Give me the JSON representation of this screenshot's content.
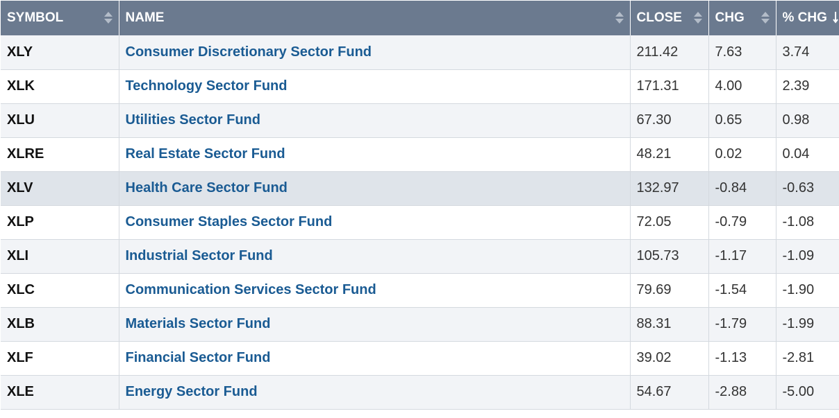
{
  "table": {
    "columns": [
      {
        "label": "SYMBOL",
        "sort_icon": "sort-both-icon"
      },
      {
        "label": "NAME",
        "sort_icon": "sort-both-icon"
      },
      {
        "label": "CLOSE",
        "sort_icon": "sort-both-icon"
      },
      {
        "label": "CHG",
        "sort_icon": "sort-both-icon"
      },
      {
        "label": "% CHG",
        "sort_icon": "sort-descending-icon"
      }
    ],
    "rows": [
      {
        "symbol": "XLY",
        "name": "Consumer Discretionary Sector Fund",
        "close": "211.42",
        "chg": "7.63",
        "pct_chg": "3.74"
      },
      {
        "symbol": "XLK",
        "name": "Technology Sector Fund",
        "close": "171.31",
        "chg": "4.00",
        "pct_chg": "2.39"
      },
      {
        "symbol": "XLU",
        "name": "Utilities Sector Fund",
        "close": "67.30",
        "chg": "0.65",
        "pct_chg": "0.98"
      },
      {
        "symbol": "XLRE",
        "name": "Real Estate Sector Fund",
        "close": "48.21",
        "chg": "0.02",
        "pct_chg": "0.04"
      },
      {
        "symbol": "XLV",
        "name": "Health Care Sector Fund",
        "close": "132.97",
        "chg": "-0.84",
        "pct_chg": "-0.63"
      },
      {
        "symbol": "XLP",
        "name": "Consumer Staples Sector Fund",
        "close": "72.05",
        "chg": "-0.79",
        "pct_chg": "-1.08"
      },
      {
        "symbol": "XLI",
        "name": "Industrial Sector Fund",
        "close": "105.73",
        "chg": "-1.17",
        "pct_chg": "-1.09"
      },
      {
        "symbol": "XLC",
        "name": "Communication Services Sector Fund",
        "close": "79.69",
        "chg": "-1.54",
        "pct_chg": "-1.90"
      },
      {
        "symbol": "XLB",
        "name": "Materials Sector Fund",
        "close": "88.31",
        "chg": "-1.79",
        "pct_chg": "-1.99"
      },
      {
        "symbol": "XLF",
        "name": "Financial Sector Fund",
        "close": "39.02",
        "chg": "-1.13",
        "pct_chg": "-2.81"
      },
      {
        "symbol": "XLE",
        "name": "Energy Sector Fund",
        "close": "54.67",
        "chg": "-2.88",
        "pct_chg": "-5.00"
      }
    ]
  },
  "colors": {
    "header_bg": "#6b7a8f",
    "link": "#1a5b93",
    "row_alt": "#f2f4f7",
    "row_highlight": "#dfe4ea"
  }
}
